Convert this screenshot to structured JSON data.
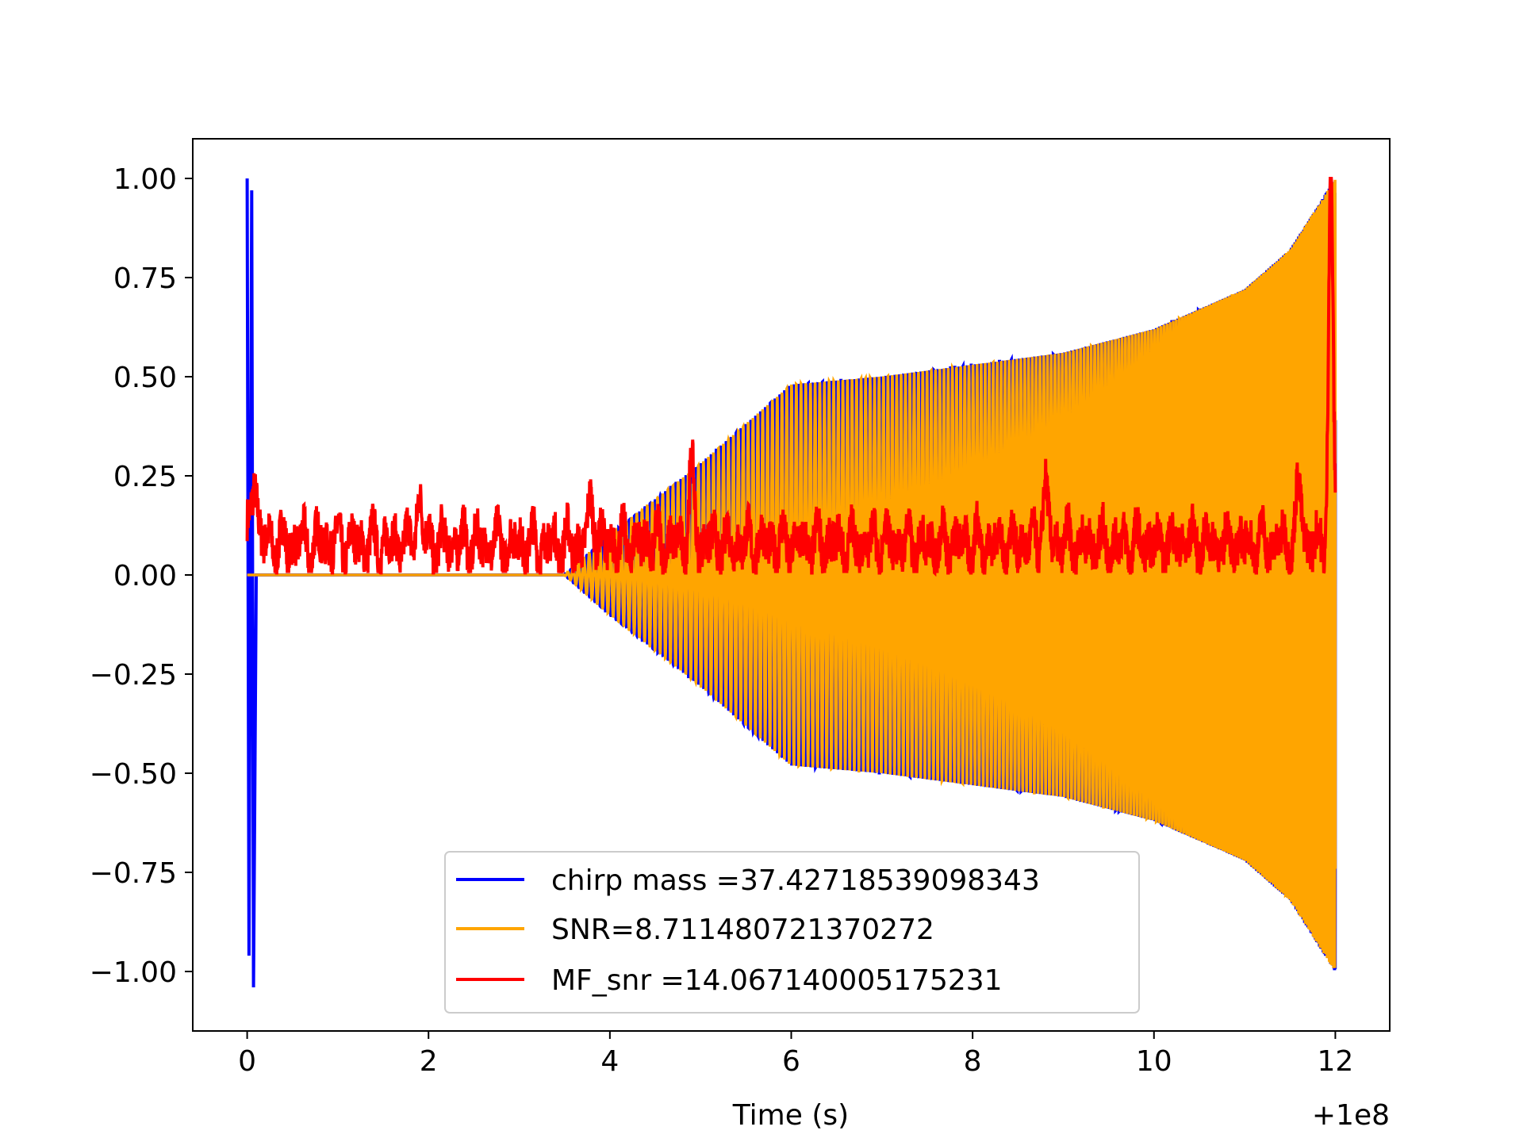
{
  "chart_data": {
    "type": "line",
    "title": "",
    "xlabel": "Time (s)",
    "ylabel": "",
    "x_offset_label": "+1e8",
    "xlim": [
      -0.6,
      12.6
    ],
    "ylim": [
      -1.15,
      1.1
    ],
    "x_ticks": [
      0,
      2,
      4,
      6,
      8,
      10,
      12
    ],
    "x_tick_labels": [
      "0",
      "2",
      "4",
      "6",
      "8",
      "10",
      "12"
    ],
    "y_ticks": [
      1.0,
      0.75,
      0.5,
      0.25,
      0.0,
      -0.25,
      -0.5,
      -0.75,
      -1.0
    ],
    "y_tick_labels": [
      "1.00",
      "0.75",
      "0.50",
      "0.25",
      "0.00",
      "−0.25",
      "−0.50",
      "−0.75",
      "−1.00"
    ],
    "grid": false,
    "legend_position": "lower-center",
    "series": [
      {
        "name": "chirp mass =37.42718539098343",
        "color": "#0000ff",
        "envelope_points": [
          [
            0,
            1.0
          ],
          [
            0.05,
            -1.04
          ],
          [
            3.5,
            0.0
          ],
          [
            4.0,
            0.1
          ],
          [
            5.0,
            0.28
          ],
          [
            6.0,
            0.48
          ],
          [
            7.0,
            0.5
          ],
          [
            8.0,
            0.53
          ],
          [
            9.0,
            0.56
          ],
          [
            10.0,
            0.62
          ],
          [
            11.0,
            0.72
          ],
          [
            11.5,
            0.82
          ],
          [
            12.0,
            1.0
          ]
        ]
      },
      {
        "name": "SNR=8.711480721370272",
        "color": "#ffa500",
        "envelope_points": [
          [
            0,
            0.0
          ],
          [
            3.5,
            0.0
          ],
          [
            4.0,
            0.1
          ],
          [
            5.0,
            0.28
          ],
          [
            6.0,
            0.48
          ],
          [
            7.0,
            0.5
          ],
          [
            8.0,
            0.53
          ],
          [
            9.0,
            0.56
          ],
          [
            10.0,
            0.62
          ],
          [
            11.0,
            0.72
          ],
          [
            11.5,
            0.82
          ],
          [
            12.0,
            1.0
          ]
        ]
      },
      {
        "name": "MF_snr =14.067140005175231",
        "color": "#ff0000",
        "baseline": 0.08,
        "peaks": [
          [
            0.08,
            0.31
          ],
          [
            1.9,
            0.23
          ],
          [
            3.8,
            0.22
          ],
          [
            4.9,
            0.3
          ],
          [
            8.8,
            0.25
          ],
          [
            11.6,
            0.26
          ],
          [
            11.95,
            1.0
          ]
        ]
      }
    ]
  }
}
